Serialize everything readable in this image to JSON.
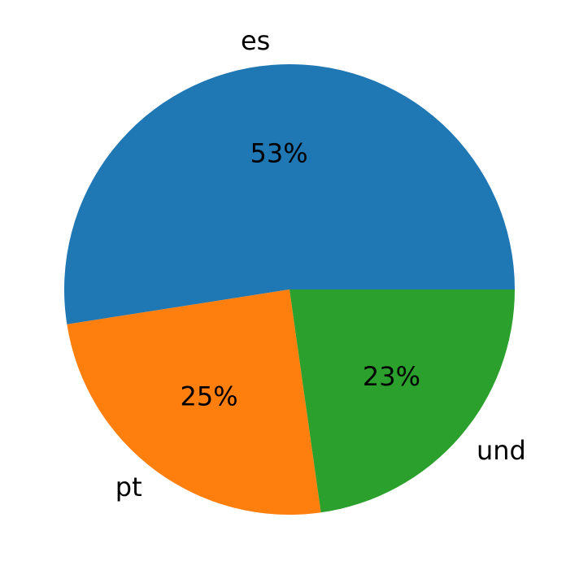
{
  "chart_data": {
    "type": "pie",
    "categories": [
      "es",
      "pt",
      "und"
    ],
    "values": [
      53,
      25,
      23
    ],
    "value_labels": [
      "53%",
      "25%",
      "23%"
    ],
    "colors": [
      "#1f77b4",
      "#ff7f0e",
      "#2ca02c"
    ]
  }
}
